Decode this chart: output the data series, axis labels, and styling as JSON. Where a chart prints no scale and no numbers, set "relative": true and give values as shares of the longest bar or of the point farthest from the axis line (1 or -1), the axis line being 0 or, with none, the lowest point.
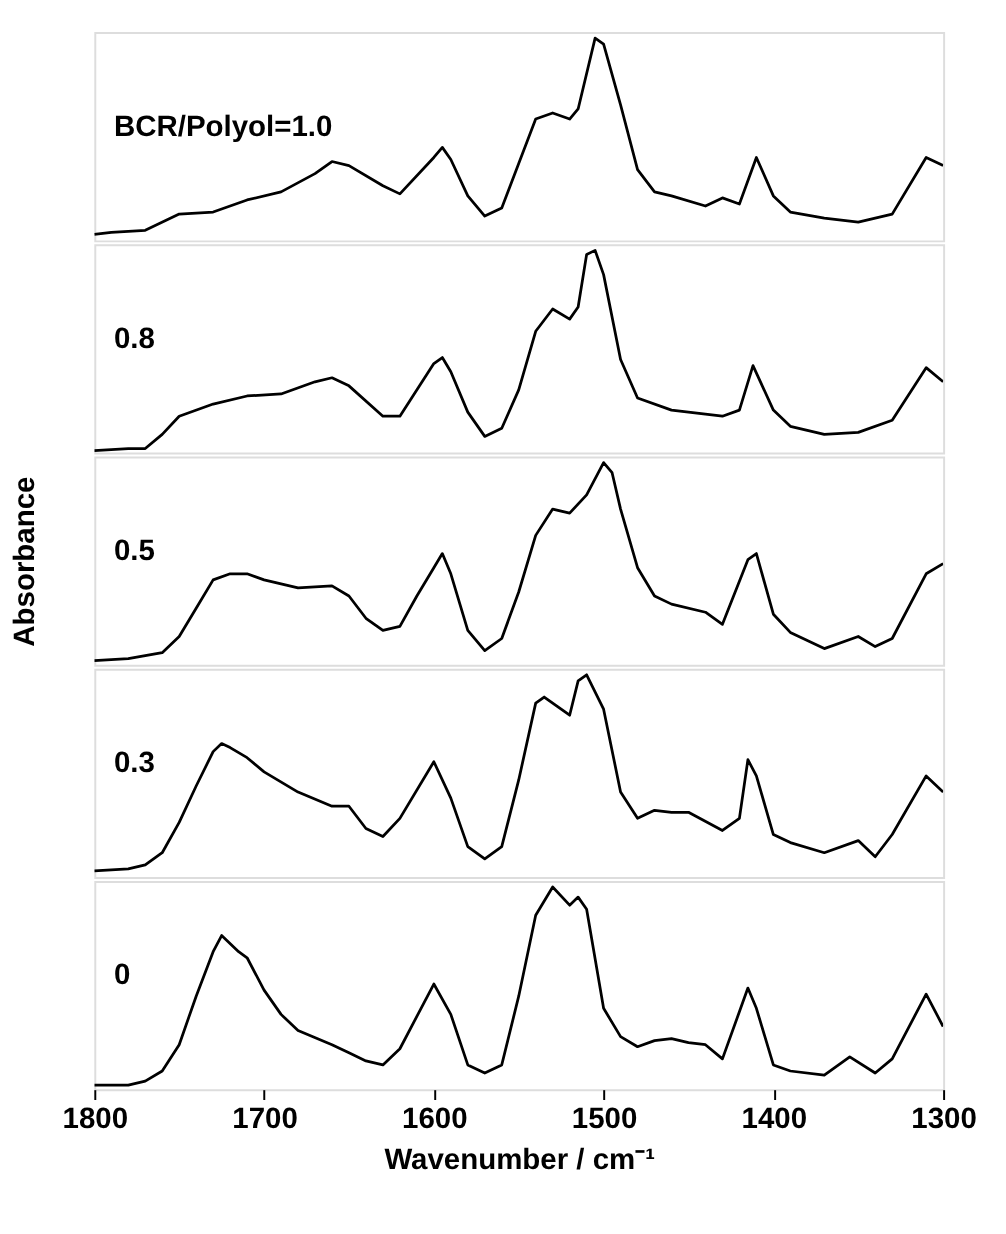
{
  "chart_data": [
    {
      "type": "line",
      "relative": true,
      "tick_labels": false,
      "xlim": [
        1800,
        1300
      ],
      "annotations": [
        "BCR/Polyol=1.0"
      ],
      "x": [
        1800,
        1790,
        1770,
        1750,
        1730,
        1710,
        1690,
        1670,
        1660,
        1650,
        1630,
        1620,
        1600,
        1595,
        1590,
        1580,
        1570,
        1560,
        1550,
        1540,
        1530,
        1520,
        1515,
        1505,
        1500,
        1490,
        1480,
        1470,
        1460,
        1440,
        1430,
        1420,
        1410,
        1400,
        1390,
        1370,
        1350,
        1330,
        1310,
        1300
      ],
      "series": [
        {
          "color": "#000000",
          "values": [
            0.03,
            0.04,
            0.05,
            0.13,
            0.14,
            0.2,
            0.24,
            0.33,
            0.39,
            0.37,
            0.27,
            0.23,
            0.41,
            0.46,
            0.4,
            0.22,
            0.12,
            0.16,
            0.38,
            0.6,
            0.63,
            0.6,
            0.65,
            1.0,
            0.97,
            0.67,
            0.35,
            0.24,
            0.22,
            0.17,
            0.21,
            0.18,
            0.41,
            0.22,
            0.14,
            0.11,
            0.09,
            0.13,
            0.41,
            0.37
          ]
        }
      ]
    },
    {
      "type": "line",
      "relative": true,
      "tick_labels": false,
      "xlim": [
        1800,
        1300
      ],
      "annotations": [
        "0.8"
      ],
      "x": [
        1800,
        1780,
        1770,
        1760,
        1750,
        1730,
        1710,
        1690,
        1670,
        1660,
        1650,
        1630,
        1620,
        1600,
        1595,
        1590,
        1580,
        1570,
        1560,
        1550,
        1540,
        1530,
        1520,
        1515,
        1510,
        1505,
        1500,
        1490,
        1480,
        1460,
        1440,
        1430,
        1420,
        1412,
        1400,
        1390,
        1370,
        1350,
        1330,
        1310,
        1300
      ],
      "series": [
        {
          "color": "#000000",
          "values": [
            0.01,
            0.02,
            0.02,
            0.09,
            0.18,
            0.24,
            0.28,
            0.29,
            0.35,
            0.37,
            0.33,
            0.18,
            0.18,
            0.44,
            0.47,
            0.4,
            0.2,
            0.08,
            0.12,
            0.31,
            0.6,
            0.71,
            0.66,
            0.72,
            0.98,
            1.0,
            0.88,
            0.46,
            0.27,
            0.21,
            0.19,
            0.18,
            0.21,
            0.43,
            0.21,
            0.13,
            0.09,
            0.1,
            0.16,
            0.42,
            0.35
          ]
        }
      ]
    },
    {
      "type": "line",
      "relative": true,
      "tick_labels": false,
      "xlim": [
        1800,
        1300
      ],
      "ylabel": "Absorbance",
      "annotations": [
        "0.5"
      ],
      "x": [
        1800,
        1780,
        1760,
        1750,
        1740,
        1730,
        1720,
        1710,
        1700,
        1680,
        1660,
        1650,
        1640,
        1630,
        1620,
        1610,
        1600,
        1595,
        1590,
        1580,
        1570,
        1560,
        1550,
        1540,
        1530,
        1520,
        1510,
        1500,
        1495,
        1490,
        1480,
        1470,
        1460,
        1440,
        1430,
        1415,
        1410,
        1400,
        1390,
        1370,
        1350,
        1340,
        1330,
        1310,
        1300
      ],
      "series": [
        {
          "color": "#000000",
          "values": [
            0.02,
            0.03,
            0.06,
            0.14,
            0.28,
            0.42,
            0.45,
            0.45,
            0.42,
            0.38,
            0.39,
            0.34,
            0.23,
            0.17,
            0.19,
            0.34,
            0.48,
            0.55,
            0.45,
            0.17,
            0.07,
            0.13,
            0.36,
            0.64,
            0.77,
            0.75,
            0.84,
            1.0,
            0.95,
            0.77,
            0.48,
            0.34,
            0.3,
            0.26,
            0.2,
            0.52,
            0.55,
            0.25,
            0.16,
            0.08,
            0.14,
            0.09,
            0.13,
            0.45,
            0.5
          ]
        }
      ]
    },
    {
      "type": "line",
      "relative": true,
      "tick_labels": false,
      "xlim": [
        1800,
        1300
      ],
      "annotations": [
        "0.3"
      ],
      "x": [
        1800,
        1780,
        1770,
        1760,
        1750,
        1740,
        1730,
        1725,
        1720,
        1710,
        1700,
        1680,
        1660,
        1650,
        1640,
        1630,
        1620,
        1600,
        1590,
        1580,
        1570,
        1560,
        1550,
        1540,
        1535,
        1525,
        1520,
        1515,
        1510,
        1500,
        1490,
        1480,
        1470,
        1460,
        1450,
        1430,
        1420,
        1415,
        1410,
        1400,
        1390,
        1370,
        1350,
        1340,
        1330,
        1310,
        1300
      ],
      "series": [
        {
          "color": "#000000",
          "values": [
            0.03,
            0.04,
            0.06,
            0.12,
            0.27,
            0.45,
            0.62,
            0.66,
            0.64,
            0.59,
            0.52,
            0.42,
            0.35,
            0.35,
            0.24,
            0.2,
            0.29,
            0.57,
            0.39,
            0.15,
            0.09,
            0.15,
            0.48,
            0.86,
            0.89,
            0.83,
            0.8,
            0.97,
            1.0,
            0.83,
            0.42,
            0.29,
            0.33,
            0.32,
            0.32,
            0.23,
            0.29,
            0.58,
            0.5,
            0.21,
            0.17,
            0.12,
            0.18,
            0.1,
            0.21,
            0.5,
            0.42
          ]
        }
      ]
    },
    {
      "type": "line",
      "relative": true,
      "tick_labels": "x",
      "xlim": [
        1800,
        1300
      ],
      "xticks": [
        1800,
        1700,
        1600,
        1500,
        1400,
        1300
      ],
      "xlabel": "Wavenumber / cm⁻¹",
      "annotations": [
        "0"
      ],
      "x": [
        1800,
        1780,
        1770,
        1760,
        1750,
        1740,
        1730,
        1725,
        1715,
        1710,
        1700,
        1690,
        1680,
        1660,
        1650,
        1640,
        1630,
        1620,
        1610,
        1600,
        1590,
        1580,
        1570,
        1560,
        1550,
        1540,
        1530,
        1520,
        1515,
        1510,
        1500,
        1490,
        1480,
        1470,
        1460,
        1450,
        1440,
        1430,
        1415,
        1410,
        1400,
        1390,
        1370,
        1355,
        1340,
        1330,
        1310,
        1300
      ],
      "series": [
        {
          "color": "#000000",
          "values": [
            0.02,
            0.02,
            0.04,
            0.09,
            0.22,
            0.46,
            0.68,
            0.76,
            0.68,
            0.65,
            0.49,
            0.37,
            0.29,
            0.22,
            0.18,
            0.14,
            0.12,
            0.2,
            0.36,
            0.52,
            0.37,
            0.12,
            0.08,
            0.12,
            0.46,
            0.86,
            1.0,
            0.91,
            0.95,
            0.89,
            0.4,
            0.26,
            0.21,
            0.24,
            0.25,
            0.23,
            0.22,
            0.15,
            0.5,
            0.4,
            0.12,
            0.09,
            0.07,
            0.16,
            0.08,
            0.15,
            0.47,
            0.31
          ]
        }
      ]
    }
  ]
}
